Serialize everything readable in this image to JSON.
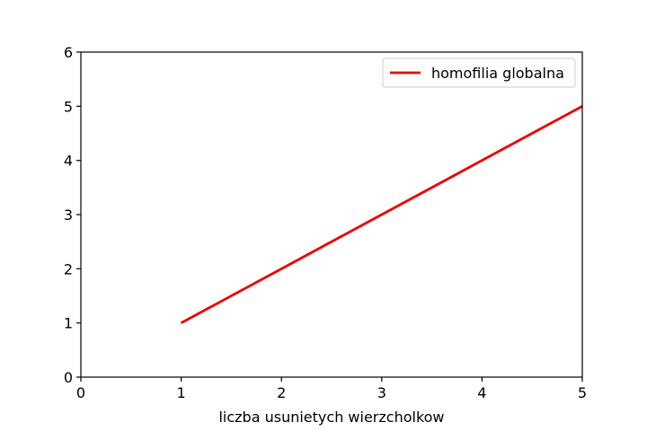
{
  "chart_data": {
    "type": "line",
    "title": "",
    "xlabel": "liczba usunietych wierzcholkow",
    "ylabel": "",
    "xlim": [
      0,
      5
    ],
    "ylim": [
      0,
      6
    ],
    "xticks": [
      "0",
      "1",
      "2",
      "3",
      "4",
      "5"
    ],
    "yticks": [
      "0",
      "1",
      "2",
      "3",
      "4",
      "5",
      "6"
    ],
    "grid": false,
    "legend_position": "top-right",
    "series": [
      {
        "name": "homofilia globalna",
        "color": "#ee0000",
        "x": [
          1,
          2,
          3,
          4,
          5
        ],
        "y": [
          1,
          2,
          3,
          4,
          5
        ]
      }
    ]
  }
}
